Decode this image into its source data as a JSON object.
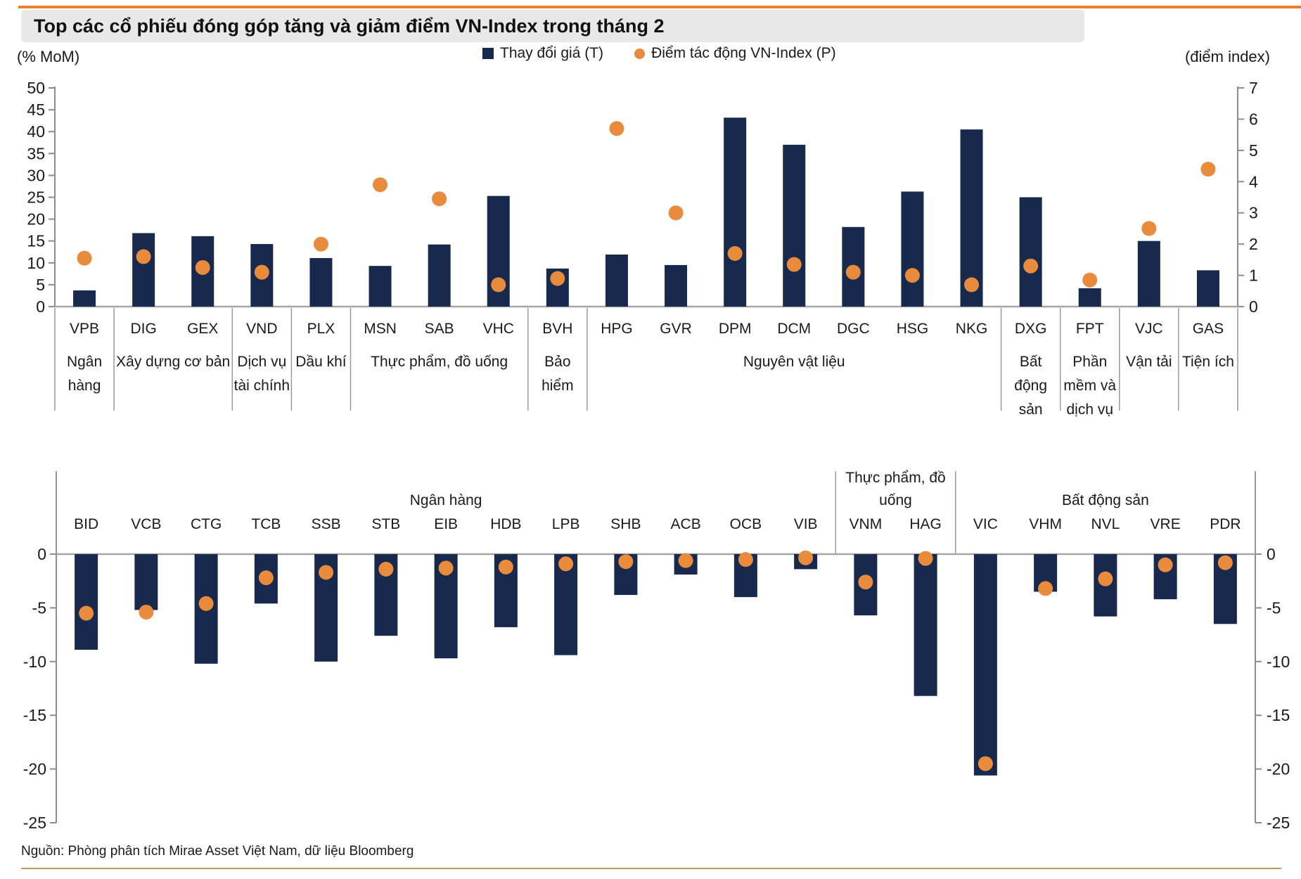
{
  "page": {
    "title": "Top các cổ phiếu đóng góp tăng và giảm điểm VN-Index trong tháng 2",
    "source": "Nguồn: Phòng phân tích Mirae Asset Việt Nam, dữ liệu Bloomberg",
    "left_axis_unit": "(% MoM)",
    "right_axis_unit": "(điểm index)"
  },
  "legend": {
    "items": [
      {
        "label": "Thay đổi giá (T)",
        "marker": "square"
      },
      {
        "label": "Điểm tác động VN-Index (P)",
        "marker": "dot"
      }
    ],
    "position": "top-center"
  },
  "colors": {
    "bar_navy": "#17294d",
    "dot_orange": "#e88b3c",
    "accent_orange": "#e8812e",
    "title_bg": "#e8e8e8",
    "axis_gray": "#8c8c8c",
    "separator_gray": "#9a9a9a",
    "rule_tan": "#b49c6a",
    "text": "#1a1a1a"
  },
  "chart_data": [
    {
      "id": "gainers",
      "type": "bar",
      "title": "Top gainers contribution",
      "categories": [
        "VPB",
        "DIG",
        "GEX",
        "VND",
        "PLX",
        "MSN",
        "SAB",
        "VHC",
        "BVH",
        "HPG",
        "GVR",
        "DPM",
        "DCM",
        "DGC",
        "HSG",
        "NKG",
        "DXG",
        "FPT",
        "VJC",
        "GAS"
      ],
      "series": [
        {
          "name": "Thay đổi giá (T)",
          "type": "bar",
          "axis": "left",
          "values": [
            3.7,
            16.8,
            16.1,
            14.3,
            11.1,
            9.3,
            14.2,
            25.3,
            8.7,
            11.9,
            9.5,
            43.2,
            37,
            18.2,
            26.3,
            40.5,
            25,
            4.2,
            15,
            8.3
          ]
        },
        {
          "name": "Điểm tác động VN-Index (P)",
          "type": "scatter",
          "axis": "right",
          "values": [
            1.55,
            1.6,
            1.25,
            1.1,
            2,
            3.9,
            3.45,
            0.7,
            0.9,
            5.7,
            3,
            1.7,
            1.35,
            1.1,
            1,
            0.7,
            1.3,
            0.85,
            2.5,
            4.4
          ]
        }
      ],
      "groups": [
        {
          "label": "Ngân hàng",
          "lines": [
            "Ngân",
            "hàng"
          ],
          "from": 0,
          "to": 0
        },
        {
          "label": "Xây dựng cơ bản",
          "lines": [
            "Xây dựng cơ bản"
          ],
          "from": 1,
          "to": 2
        },
        {
          "label": "Dịch vụ tài chính",
          "lines": [
            "Dịch vụ",
            "tài chính"
          ],
          "from": 3,
          "to": 3
        },
        {
          "label": "Dầu khí",
          "lines": [
            "Dầu khí"
          ],
          "from": 4,
          "to": 4
        },
        {
          "label": "Thực phẩm, đồ uống",
          "lines": [
            "Thực phẩm, đồ uống"
          ],
          "from": 5,
          "to": 7
        },
        {
          "label": "Bảo hiểm",
          "lines": [
            "Bảo",
            "hiểm"
          ],
          "from": 8,
          "to": 8
        },
        {
          "label": "Nguyên vật liệu",
          "lines": [
            "Nguyên vật liệu"
          ],
          "from": 9,
          "to": 15
        },
        {
          "label": "Bất động sản",
          "lines": [
            "Bất",
            "động",
            "sản"
          ],
          "from": 16,
          "to": 16
        },
        {
          "label": "Phần mềm và dịch vụ",
          "lines": [
            "Phần",
            "mềm và",
            "dịch vụ"
          ],
          "from": 17,
          "to": 17
        },
        {
          "label": "Vận tải",
          "lines": [
            "Vận tải"
          ],
          "from": 18,
          "to": 18
        },
        {
          "label": "Tiện ích",
          "lines": [
            "Tiện ích"
          ],
          "from": 19,
          "to": 19
        }
      ],
      "left_axis": {
        "min": 0,
        "max": 50,
        "step": 5,
        "grid": false
      },
      "right_axis": {
        "min": 0,
        "max": 7,
        "step": 1,
        "grid": false
      }
    },
    {
      "id": "losers",
      "type": "bar",
      "title": "Top losers contribution",
      "categories": [
        "BID",
        "VCB",
        "CTG",
        "TCB",
        "SSB",
        "STB",
        "EIB",
        "HDB",
        "LPB",
        "SHB",
        "ACB",
        "OCB",
        "VIB",
        "VNM",
        "HAG",
        "VIC",
        "VHM",
        "NVL",
        "VRE",
        "PDR"
      ],
      "series": [
        {
          "name": "Thay đổi giá (T)",
          "type": "bar",
          "axis": "left",
          "values": [
            -8.9,
            -5.2,
            -10.2,
            -4.6,
            -10,
            -7.6,
            -9.7,
            -6.8,
            -9.4,
            -3.8,
            -1.9,
            -4,
            -1.4,
            -5.7,
            -13.2,
            -20.6,
            -3.5,
            -5.8,
            -4.2,
            -6.5
          ]
        },
        {
          "name": "Điểm tác động VN-Index (P)",
          "type": "scatter",
          "axis": "right",
          "values": [
            -5.5,
            -5.4,
            -4.6,
            -2.2,
            -1.7,
            -1.4,
            -1.3,
            -1.2,
            -0.9,
            -0.7,
            -0.6,
            -0.5,
            -0.35,
            -2.6,
            -0.4,
            -19.5,
            -3.2,
            -2.3,
            -1,
            -0.8
          ]
        }
      ],
      "groups": [
        {
          "label": "Ngân hàng",
          "lines": [
            "Ngân hàng"
          ],
          "from": 0,
          "to": 12
        },
        {
          "label": "Thực phẩm, đồ uống",
          "lines": [
            "Thực phẩm, đồ",
            "uống"
          ],
          "from": 13,
          "to": 14
        },
        {
          "label": "Bất động sản",
          "lines": [
            "Bất động sản"
          ],
          "from": 15,
          "to": 19
        }
      ],
      "left_axis": {
        "min": -25,
        "max": 0,
        "step": 5,
        "grid": false
      },
      "right_axis": {
        "min": -25,
        "max": 0,
        "step": 5,
        "grid": false
      }
    }
  ]
}
